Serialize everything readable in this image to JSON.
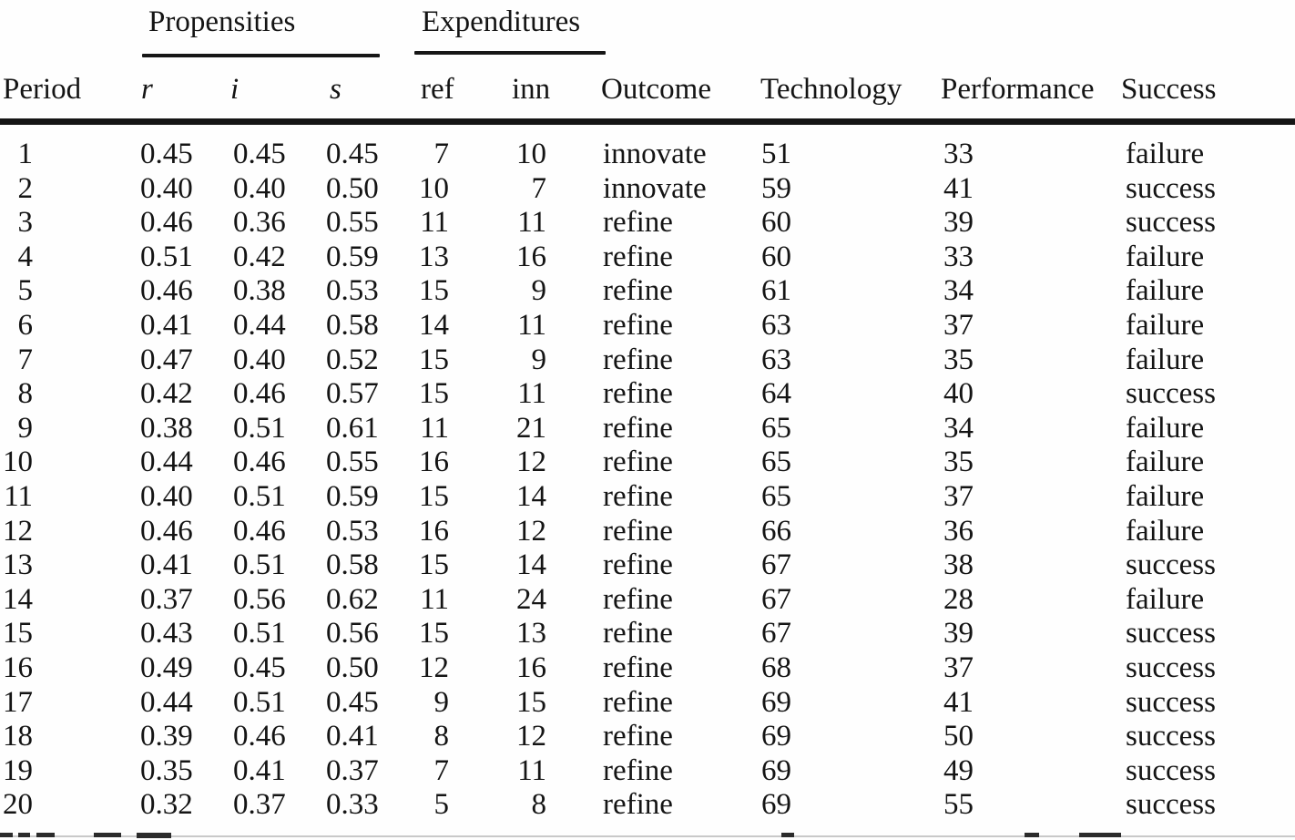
{
  "table": {
    "group_headers": {
      "propensities": "Propensities",
      "expenditures": "Expenditures"
    },
    "columns": [
      "Period",
      "r",
      "i",
      "s",
      "ref",
      "inn",
      "Outcome",
      "Technology",
      "Performance",
      "Success"
    ],
    "rows": [
      {
        "period": "1",
        "r": "0.45",
        "i": "0.45",
        "s": "0.45",
        "ref": "7",
        "inn": "10",
        "outcome": "innovate",
        "technology": "51",
        "performance": "33",
        "success": "failure"
      },
      {
        "period": "2",
        "r": "0.40",
        "i": "0.40",
        "s": "0.50",
        "ref": "10",
        "inn": "7",
        "outcome": "innovate",
        "technology": "59",
        "performance": "41",
        "success": "success"
      },
      {
        "period": "3",
        "r": "0.46",
        "i": "0.36",
        "s": "0.55",
        "ref": "11",
        "inn": "11",
        "outcome": "refine",
        "technology": "60",
        "performance": "39",
        "success": "success"
      },
      {
        "period": "4",
        "r": "0.51",
        "i": "0.42",
        "s": "0.59",
        "ref": "13",
        "inn": "16",
        "outcome": "refine",
        "technology": "60",
        "performance": "33",
        "success": "failure"
      },
      {
        "period": "5",
        "r": "0.46",
        "i": "0.38",
        "s": "0.53",
        "ref": "15",
        "inn": "9",
        "outcome": "refine",
        "technology": "61",
        "performance": "34",
        "success": "failure"
      },
      {
        "period": "6",
        "r": "0.41",
        "i": "0.44",
        "s": "0.58",
        "ref": "14",
        "inn": "11",
        "outcome": "refine",
        "technology": "63",
        "performance": "37",
        "success": "failure"
      },
      {
        "period": "7",
        "r": "0.47",
        "i": "0.40",
        "s": "0.52",
        "ref": "15",
        "inn": "9",
        "outcome": "refine",
        "technology": "63",
        "performance": "35",
        "success": "failure"
      },
      {
        "period": "8",
        "r": "0.42",
        "i": "0.46",
        "s": "0.57",
        "ref": "15",
        "inn": "11",
        "outcome": "refine",
        "technology": "64",
        "performance": "40",
        "success": "success"
      },
      {
        "period": "9",
        "r": "0.38",
        "i": "0.51",
        "s": "0.61",
        "ref": "11",
        "inn": "21",
        "outcome": "refine",
        "technology": "65",
        "performance": "34",
        "success": "failure"
      },
      {
        "period": "10",
        "r": "0.44",
        "i": "0.46",
        "s": "0.55",
        "ref": "16",
        "inn": "12",
        "outcome": "refine",
        "technology": "65",
        "performance": "35",
        "success": "failure"
      },
      {
        "period": "11",
        "r": "0.40",
        "i": "0.51",
        "s": "0.59",
        "ref": "15",
        "inn": "14",
        "outcome": "refine",
        "technology": "65",
        "performance": "37",
        "success": "failure"
      },
      {
        "period": "12",
        "r": "0.46",
        "i": "0.46",
        "s": "0.53",
        "ref": "16",
        "inn": "12",
        "outcome": "refine",
        "technology": "66",
        "performance": "36",
        "success": "failure"
      },
      {
        "period": "13",
        "r": "0.41",
        "i": "0.51",
        "s": "0.58",
        "ref": "15",
        "inn": "14",
        "outcome": "refine",
        "technology": "67",
        "performance": "38",
        "success": "success"
      },
      {
        "period": "14",
        "r": "0.37",
        "i": "0.56",
        "s": "0.62",
        "ref": "11",
        "inn": "24",
        "outcome": "refine",
        "technology": "67",
        "performance": "28",
        "success": "failure"
      },
      {
        "period": "15",
        "r": "0.43",
        "i": "0.51",
        "s": "0.56",
        "ref": "15",
        "inn": "13",
        "outcome": "refine",
        "technology": "67",
        "performance": "39",
        "success": "success"
      },
      {
        "period": "16",
        "r": "0.49",
        "i": "0.45",
        "s": "0.50",
        "ref": "12",
        "inn": "16",
        "outcome": "refine",
        "technology": "68",
        "performance": "37",
        "success": "success"
      },
      {
        "period": "17",
        "r": "0.44",
        "i": "0.51",
        "s": "0.45",
        "ref": "9",
        "inn": "15",
        "outcome": "refine",
        "technology": "69",
        "performance": "41",
        "success": "success"
      },
      {
        "period": "18",
        "r": "0.39",
        "i": "0.46",
        "s": "0.41",
        "ref": "8",
        "inn": "12",
        "outcome": "refine",
        "technology": "69",
        "performance": "50",
        "success": "success"
      },
      {
        "period": "19",
        "r": "0.35",
        "i": "0.41",
        "s": "0.37",
        "ref": "7",
        "inn": "11",
        "outcome": "refine",
        "technology": "69",
        "performance": "49",
        "success": "success"
      },
      {
        "period": "20",
        "r": "0.32",
        "i": "0.37",
        "s": "0.33",
        "ref": "5",
        "inn": "8",
        "outcome": "refine",
        "technology": "69",
        "performance": "55",
        "success": "success"
      }
    ]
  },
  "colors": {
    "text": "#141414",
    "rule": "#151515",
    "background": "#fefefe"
  }
}
